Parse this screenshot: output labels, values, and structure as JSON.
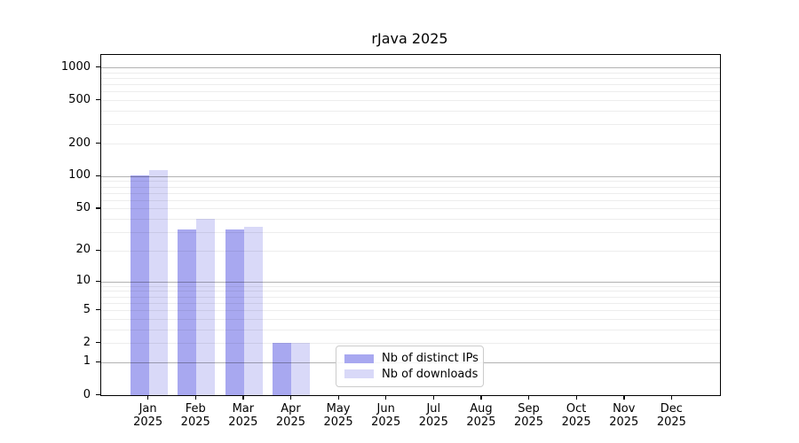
{
  "chart_data": {
    "type": "bar",
    "title": "rJava 2025",
    "categories": [
      "Jan",
      "Feb",
      "Mar",
      "Apr",
      "May",
      "Jun",
      "Jul",
      "Aug",
      "Sep",
      "Oct",
      "Nov",
      "Dec"
    ],
    "x_year_label": "2025",
    "series": [
      {
        "name": "Nb of distinct IPs",
        "color": "#a8a8f0",
        "values": [
          102,
          32,
          32,
          2,
          0,
          0,
          0,
          0,
          0,
          0,
          0,
          0
        ]
      },
      {
        "name": "Nb of downloads",
        "color": "#d9d9f8",
        "values": [
          114,
          40,
          34,
          2,
          0,
          0,
          0,
          0,
          0,
          0,
          0,
          0
        ]
      }
    ],
    "yscale": "log1p",
    "ylim": [
      0,
      1300
    ],
    "yticks": [
      0,
      1,
      2,
      5,
      10,
      20,
      50,
      100,
      200,
      500,
      1000
    ],
    "grid_major": [
      1,
      10,
      100,
      1000
    ],
    "grid_minor": [
      2,
      3,
      4,
      5,
      6,
      7,
      8,
      9,
      20,
      30,
      40,
      50,
      60,
      70,
      80,
      90,
      200,
      300,
      400,
      500,
      600,
      700,
      800,
      900
    ],
    "grid_on": true,
    "legend_position": "lower center",
    "axis_color": "#000000",
    "major_grid_color": "#b3b3b3",
    "minor_grid_color": "#ececec",
    "background_color": "#ffffff"
  }
}
